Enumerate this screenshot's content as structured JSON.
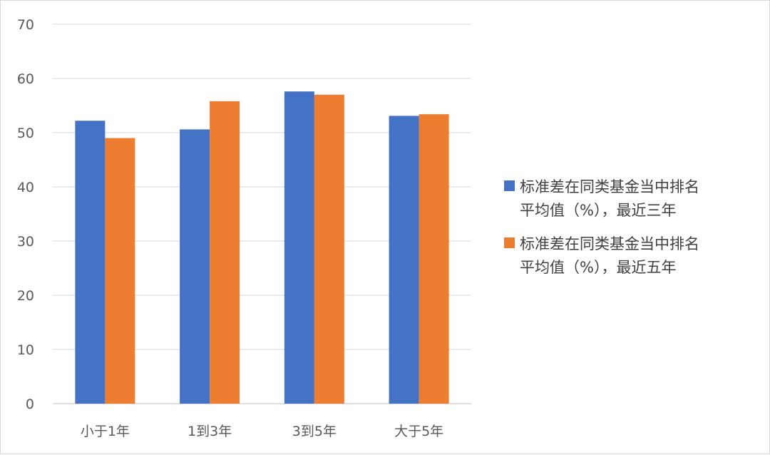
{
  "chart_data": {
    "type": "bar",
    "categories": [
      "小于1年",
      "1到3年",
      "3到5年",
      "大于5年"
    ],
    "series": [
      {
        "name": "标准差在同类基金当中排名平均值（%），最近三年",
        "legend_lines": [
          "标准差在同类基金当中排名",
          "平均值（%），最近三年"
        ],
        "color": "#4472c4",
        "values": [
          52.2,
          50.6,
          57.6,
          53.1
        ]
      },
      {
        "name": "标准差在同类基金当中排名平均值（%），最近五年",
        "legend_lines": [
          "标准差在同类基金当中排名",
          "平均值（%），最近五年"
        ],
        "color": "#ed7d31",
        "values": [
          49.0,
          55.8,
          57.0,
          53.4
        ]
      }
    ],
    "yticks": [
      "0",
      "10",
      "20",
      "30",
      "40",
      "50",
      "60",
      "70"
    ],
    "ylim": [
      0,
      70
    ],
    "xlabel": "",
    "ylabel": "",
    "grid": true,
    "legend_position": "right"
  }
}
